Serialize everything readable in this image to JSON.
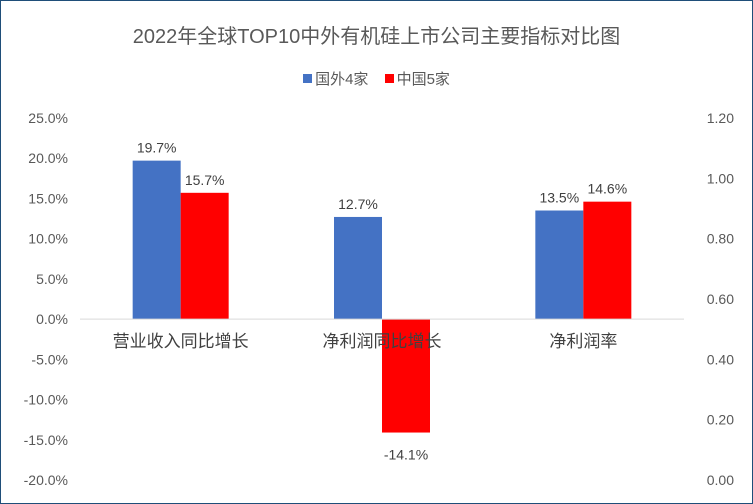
{
  "chart_data": {
    "type": "bar",
    "title": "2022年全球TOP10中外有机硅上市公司主要指标对比图",
    "categories": [
      "营业收入同比增长",
      "净利润同比增长",
      "净利润率"
    ],
    "series": [
      {
        "name": "国外4家",
        "values": [
          19.7,
          12.7,
          13.5
        ],
        "labels": [
          "19.7%",
          "12.7%",
          "13.5%"
        ],
        "color": "#4472c4"
      },
      {
        "name": "中国5家",
        "values": [
          15.7,
          -14.1,
          14.6
        ],
        "labels": [
          "15.7%",
          "-14.1%",
          "14.6%"
        ],
        "color": "#ff0000"
      }
    ],
    "y_left": {
      "ylim": [
        -20,
        25
      ],
      "ticks": [
        "25.0%",
        "20.0%",
        "15.0%",
        "10.0%",
        "5.0%",
        "0.0%",
        "-5.0%",
        "-10.0%",
        "-15.0%",
        "-20.0%"
      ]
    },
    "y_right": {
      "ylim": [
        0,
        1.2
      ],
      "ticks": [
        "1.20",
        "1.00",
        "0.80",
        "0.60",
        "0.40",
        "0.20",
        "0.00"
      ]
    },
    "legend_position": "top",
    "grid": false
  }
}
